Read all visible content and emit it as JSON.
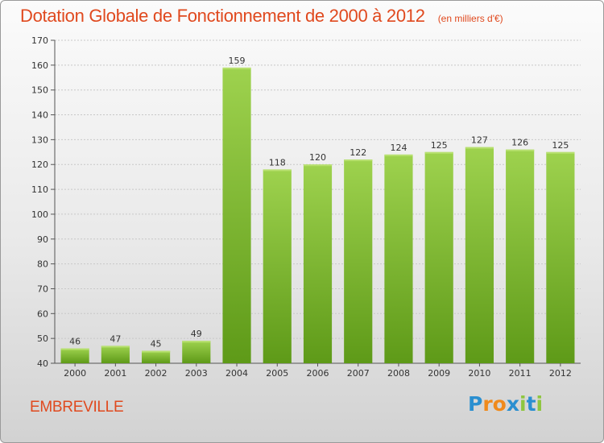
{
  "header": {
    "title": "Dotation Globale de Fonctionnement de 2000 à 2012",
    "subtitle": "(en milliers d'€)"
  },
  "commune": "EMBREVILLE",
  "logo": {
    "text": "Proxiti",
    "letters": [
      "P",
      "r",
      "o",
      "x",
      "i",
      "t",
      "i"
    ],
    "colors": [
      "#2a8fd0",
      "#f08a1c",
      "#f08a1c",
      "#2a8fd0",
      "#8ec63f",
      "#2a8fd0",
      "#8ec63f"
    ]
  },
  "colors": {
    "accent": "#e0491e",
    "bar_light": "#9ed24e",
    "bar_dark": "#5e9a18",
    "grid": "#c8c8c8"
  },
  "chart_data": {
    "type": "bar",
    "title": "Dotation Globale de Fonctionnement de 2000 à 2012",
    "subtitle": "(en milliers d'€)",
    "categories": [
      "2000",
      "2001",
      "2002",
      "2003",
      "2004",
      "2005",
      "2006",
      "2007",
      "2008",
      "2009",
      "2010",
      "2011",
      "2012"
    ],
    "values": [
      46,
      47,
      45,
      49,
      159,
      118,
      120,
      122,
      124,
      125,
      127,
      126,
      125
    ],
    "ylim": [
      40,
      170
    ],
    "yticks": [
      40,
      50,
      60,
      70,
      80,
      90,
      100,
      110,
      120,
      130,
      140,
      150,
      160,
      170
    ],
    "xlabel": "",
    "ylabel": "",
    "grid": true,
    "data_labels": true
  }
}
